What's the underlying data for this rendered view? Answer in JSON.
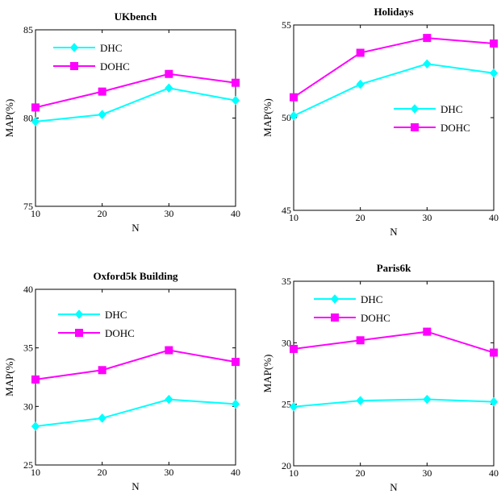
{
  "chart_data": [
    {
      "type": "line",
      "title": "UKbench",
      "xlabel": "N",
      "ylabel": "MAP(%)",
      "x": [
        10,
        20,
        30,
        40
      ],
      "xlim": [
        10,
        40
      ],
      "ylim": [
        75,
        85
      ],
      "xticks": [
        "10",
        "20",
        "30",
        "40"
      ],
      "yticks": [
        "75",
        "80",
        "85"
      ],
      "legend_placement": "top-left",
      "series": [
        {
          "name": "DHC",
          "values": [
            79.8,
            80.2,
            81.7,
            81.0
          ],
          "color": "#00ffff",
          "marker": "diamond"
        },
        {
          "name": "DOHC",
          "values": [
            80.6,
            81.5,
            82.5,
            82.0
          ],
          "color": "#ff00ff",
          "marker": "square"
        }
      ]
    },
    {
      "type": "line",
      "title": "Holidays",
      "xlabel": "N",
      "ylabel": "MAP(%)",
      "x": [
        10,
        20,
        30,
        40
      ],
      "xlim": [
        10,
        40
      ],
      "ylim": [
        45,
        55
      ],
      "xticks": [
        "10",
        "20",
        "30",
        "40"
      ],
      "yticks": [
        "45",
        "50",
        "55"
      ],
      "legend_placement": "middle-right",
      "series": [
        {
          "name": "DHC",
          "values": [
            50.1,
            51.8,
            52.9,
            52.4
          ],
          "color": "#00ffff",
          "marker": "diamond"
        },
        {
          "name": "DOHC",
          "values": [
            51.1,
            53.5,
            54.3,
            54.0
          ],
          "color": "#ff00ff",
          "marker": "square"
        }
      ]
    },
    {
      "type": "line",
      "title": "Oxford5k Building",
      "xlabel": "N",
      "ylabel": "MAP(%)",
      "x": [
        10,
        20,
        30,
        40
      ],
      "xlim": [
        10,
        40
      ],
      "ylim": [
        25,
        40
      ],
      "xticks": [
        "10",
        "20",
        "30",
        "40"
      ],
      "yticks": [
        "25",
        "30",
        "35",
        "40"
      ],
      "legend_placement": "top-left",
      "series": [
        {
          "name": "DHC",
          "values": [
            28.3,
            29.0,
            30.6,
            30.2
          ],
          "color": "#00ffff",
          "marker": "diamond"
        },
        {
          "name": "DOHC",
          "values": [
            32.3,
            33.1,
            34.8,
            33.8
          ],
          "color": "#ff00ff",
          "marker": "square"
        }
      ]
    },
    {
      "type": "line",
      "title": "Paris6k",
      "xlabel": "N",
      "ylabel": "MAP(%)",
      "x": [
        10,
        20,
        30,
        40
      ],
      "xlim": [
        10,
        40
      ],
      "ylim": [
        20,
        35
      ],
      "xticks": [
        "10",
        "20",
        "30",
        "40"
      ],
      "yticks": [
        "20",
        "25",
        "30",
        "35"
      ],
      "legend_placement": "top-left",
      "series": [
        {
          "name": "DHC",
          "values": [
            24.8,
            25.3,
            25.4,
            25.2
          ],
          "color": "#00ffff",
          "marker": "diamond"
        },
        {
          "name": "DOHC",
          "values": [
            29.5,
            30.2,
            30.9,
            29.2
          ],
          "color": "#ff00ff",
          "marker": "square"
        }
      ]
    }
  ]
}
